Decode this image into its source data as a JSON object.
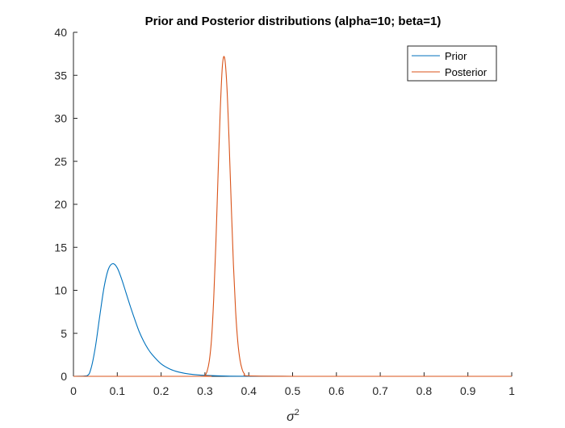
{
  "chart_data": {
    "type": "line",
    "title": "Prior and Posterior distributions (alpha=10; beta=1)",
    "xlabel_base": "σ",
    "xlabel_sup": "2",
    "ylabel": "",
    "xlim": [
      0,
      1
    ],
    "ylim": [
      0,
      40
    ],
    "xticks": [
      0,
      0.1,
      0.2,
      0.3,
      0.4,
      0.5,
      0.6,
      0.7,
      0.8,
      0.9,
      1
    ],
    "xtick_labels": [
      "0",
      "0.1",
      "0.2",
      "0.3",
      "0.4",
      "0.5",
      "0.6",
      "0.7",
      "0.8",
      "0.9",
      "1"
    ],
    "yticks": [
      0,
      5,
      10,
      15,
      20,
      25,
      30,
      35,
      40
    ],
    "ytick_labels": [
      "0",
      "5",
      "10",
      "15",
      "20",
      "25",
      "30",
      "35",
      "40"
    ],
    "grid": false,
    "legend_position": "top-right",
    "series": [
      {
        "name": "Prior",
        "color": "#0072BD",
        "x": [
          0,
          0.03,
          0.04,
          0.05,
          0.06,
          0.07,
          0.08,
          0.09,
          0.1,
          0.11,
          0.12,
          0.13,
          0.14,
          0.15,
          0.16,
          0.17,
          0.18,
          0.2,
          0.22,
          0.24,
          0.26,
          0.28,
          0.3,
          0.35,
          0.4,
          0.5,
          0.6,
          0.7,
          0.8,
          0.9,
          1
        ],
        "y": [
          0,
          0.05,
          0.9,
          3.4,
          7.0,
          10.4,
          12.5,
          13.1,
          12.6,
          11.3,
          9.7,
          8.1,
          6.6,
          5.2,
          4.1,
          3.2,
          2.5,
          1.45,
          0.85,
          0.5,
          0.3,
          0.18,
          0.11,
          0.03,
          0.01,
          0,
          0,
          0,
          0,
          0,
          0
        ]
      },
      {
        "name": "Posterior",
        "color": "#D95319",
        "x": [
          0,
          0.29,
          0.3,
          0.305,
          0.31,
          0.315,
          0.32,
          0.325,
          0.33,
          0.335,
          0.34,
          0.345,
          0.35,
          0.355,
          0.36,
          0.365,
          0.37,
          0.375,
          0.38,
          0.385,
          0.39,
          0.4,
          0.5,
          0.6,
          0.7,
          0.8,
          0.9,
          1
        ],
        "y": [
          0,
          0,
          0.1,
          0.6,
          1.8,
          4.3,
          9.0,
          15.5,
          23.5,
          31.0,
          36.2,
          37.0,
          33.8,
          27.5,
          20.0,
          13.0,
          7.6,
          4.0,
          1.9,
          0.8,
          0.3,
          0.05,
          0,
          0,
          0,
          0,
          0,
          0
        ]
      }
    ]
  }
}
